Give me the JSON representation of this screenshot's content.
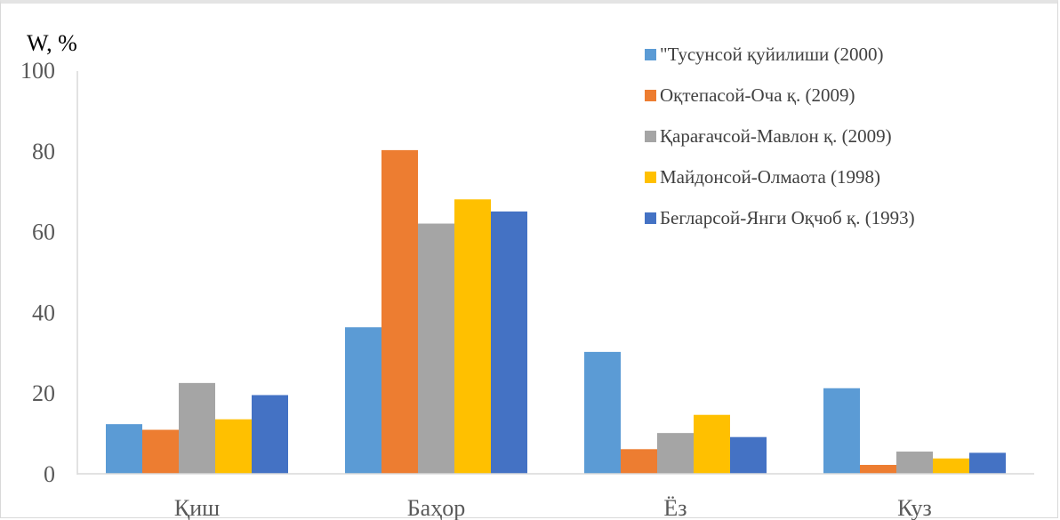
{
  "chart_data": {
    "type": "bar",
    "ylabel": "W, %",
    "xlabel": "",
    "ylim": [
      0,
      100
    ],
    "yticks": [
      "0",
      "20",
      "40",
      "60",
      "80",
      "100"
    ],
    "categories": [
      "Қиш",
      "Баҳор",
      "Ёз",
      "Куз"
    ],
    "legend_position": "top-right",
    "grid": false,
    "series": [
      {
        "name": "\"Тусунсой қуйилиши (2000)",
        "color": "#5b9bd5",
        "values": [
          12.3,
          36.3,
          30.2,
          21.2
        ]
      },
      {
        "name": "Оқтепасой-Оча қ. (2009)",
        "color": "#ed7d31",
        "values": [
          10.9,
          80.2,
          6.1,
          2.2
        ]
      },
      {
        "name": "Қарағачсой-Мавлон қ. (2009)",
        "color": "#a5a5a5",
        "values": [
          22.5,
          62.0,
          10.1,
          5.5
        ]
      },
      {
        "name": "Майдонсой-Олмаота (1998)",
        "color": "#ffc000",
        "values": [
          13.5,
          68.0,
          14.6,
          3.8
        ]
      },
      {
        "name": "Бегларсой-Янги Оқчоб қ. (1993)",
        "color": "#4472c4",
        "values": [
          19.5,
          65.0,
          9.1,
          5.2
        ]
      }
    ]
  }
}
